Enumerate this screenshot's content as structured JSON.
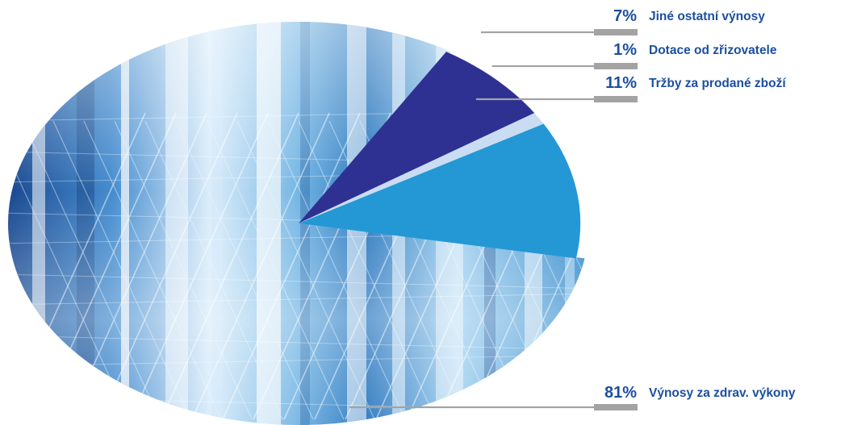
{
  "chart_data": {
    "type": "pie",
    "title": "",
    "slices": [
      {
        "label": "Výnosy za zdrav. výkony",
        "percent_label": "81%",
        "value": 81,
        "color": "#8fc4e6"
      },
      {
        "label": "Jiné ostatní výnosy",
        "percent_label": "7%",
        "value": 7,
        "color": "#2e3192"
      },
      {
        "label": "Dotace od zřizovatele",
        "percent_label": "1%",
        "value": 1,
        "color": "#c9dcf2"
      },
      {
        "label": "Tržby za prodané zboží",
        "percent_label": "11%",
        "value": 11,
        "color": "#2398d5"
      }
    ],
    "legend": "right",
    "colors": {
      "percent_text": "#1c4fa0",
      "label_text": "#1c4fa0",
      "leader_line": "#a3a3a3"
    }
  }
}
